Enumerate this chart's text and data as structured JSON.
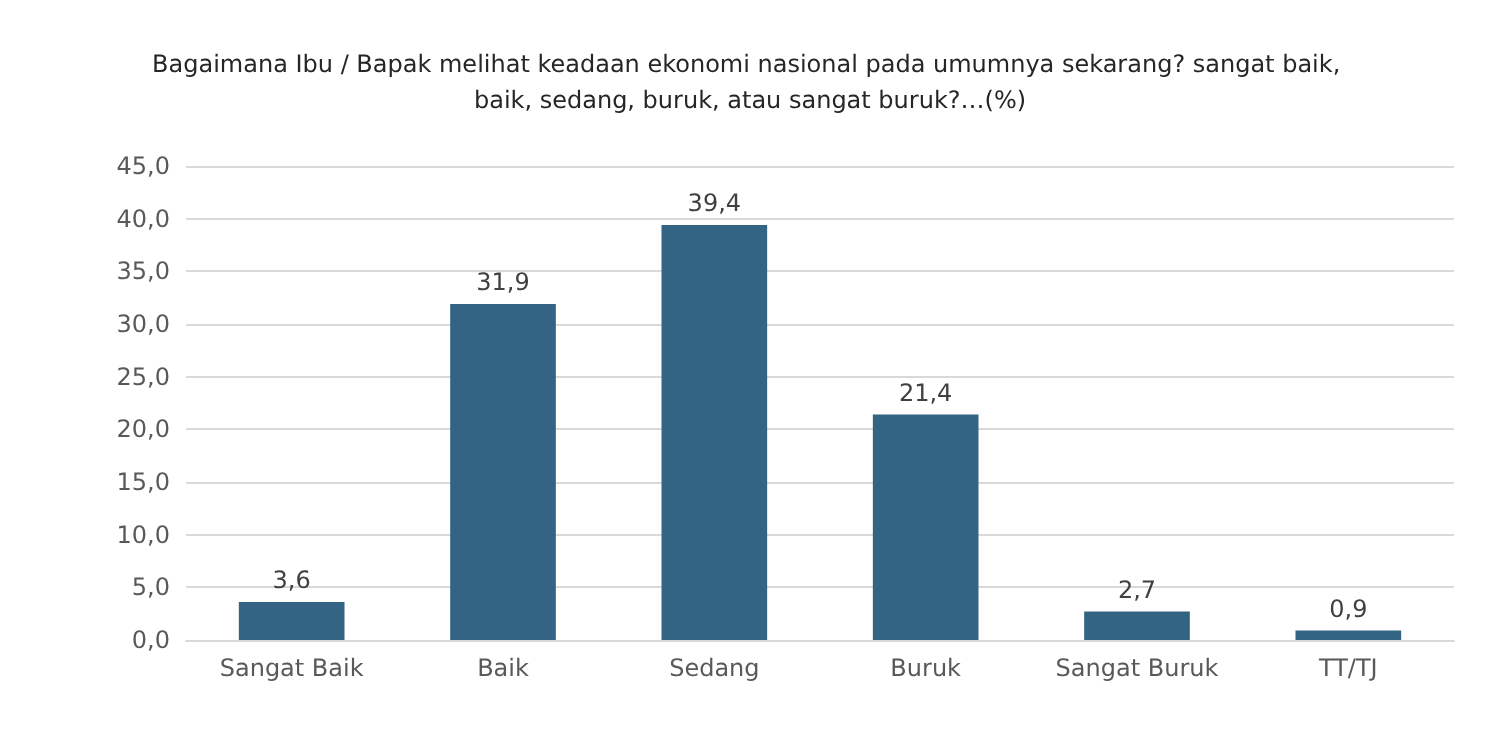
{
  "chart_data": {
    "type": "bar",
    "title": "Bagaimana Ibu / Bapak melihat keadaan ekonomi nasional pada umumnya sekarang? sangat baik, baik, sedang, buruk, atau sangat buruk?…(%)",
    "categories": [
      "Sangat Baik",
      "Baik",
      "Sedang",
      "Buruk",
      "Sangat Buruk",
      "TT/TJ"
    ],
    "values": [
      3.6,
      31.9,
      39.4,
      21.4,
      2.7,
      0.9
    ],
    "value_labels": [
      "3,6",
      "31,9",
      "39,4",
      "21,4",
      "2,7",
      "0,9"
    ],
    "color": "#336483",
    "ylim": [
      0,
      45
    ],
    "yticks": [
      {
        "value": 0,
        "label": "0,0"
      },
      {
        "value": 5,
        "label": "5,0"
      },
      {
        "value": 10,
        "label": "10,0"
      },
      {
        "value": 15,
        "label": "15,0"
      },
      {
        "value": 20,
        "label": "20,0"
      },
      {
        "value": 25,
        "label": "25,0"
      },
      {
        "value": 30,
        "label": "30,0"
      },
      {
        "value": 35,
        "label": "35,0"
      },
      {
        "value": 40,
        "label": "40,0"
      },
      {
        "value": 45,
        "label": "45,0"
      }
    ],
    "grid": "y"
  }
}
